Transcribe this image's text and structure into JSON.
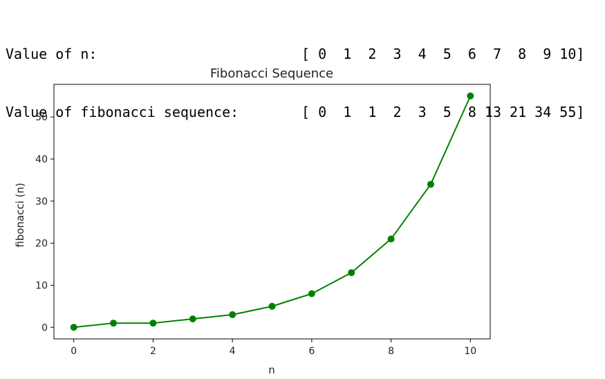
{
  "console": {
    "n_label": "Value of n:",
    "n_array": "[ 0  1  2  3  4  5  6  7  8  9 10]",
    "fib_label": "Value of fibonacci sequence:",
    "fib_array": "[ 0  1  1  2  3  5  8 13 21 34 55]"
  },
  "chart_data": {
    "type": "line",
    "title": "Fibonacci Sequence",
    "xlabel": "n",
    "ylabel": "fibonacci (n)",
    "x": [
      0,
      1,
      2,
      3,
      4,
      5,
      6,
      7,
      8,
      9,
      10
    ],
    "series": [
      {
        "values": [
          0,
          1,
          1,
          2,
          3,
          5,
          8,
          13,
          21,
          34,
          55
        ],
        "color": "#008000",
        "marker": "circle"
      }
    ],
    "xlim": [
      -0.5,
      10.5
    ],
    "ylim": [
      -2.75,
      57.75
    ],
    "xticks": [
      0,
      2,
      4,
      6,
      8,
      10
    ],
    "yticks": [
      0,
      10,
      20,
      30,
      40,
      50
    ],
    "grid": false,
    "legend": "none"
  }
}
